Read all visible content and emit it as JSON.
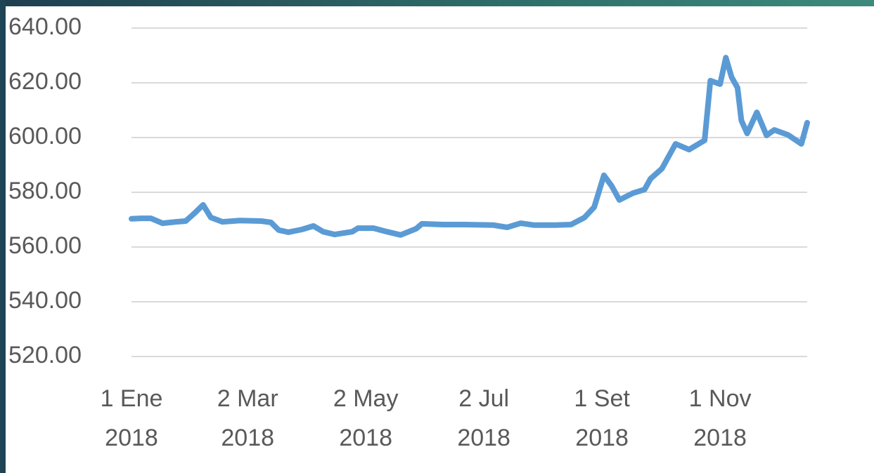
{
  "chart_data": {
    "type": "line",
    "x": [
      "2018-01-01",
      "2018-01-06",
      "2018-01-11",
      "2018-01-17",
      "2018-01-24",
      "2018-01-29",
      "2018-02-02",
      "2018-02-07",
      "2018-02-11",
      "2018-02-17",
      "2018-02-26",
      "2018-03-09",
      "2018-03-14",
      "2018-03-18",
      "2018-03-23",
      "2018-03-30",
      "2018-04-05",
      "2018-04-10",
      "2018-04-16",
      "2018-04-25",
      "2018-04-28",
      "2018-05-06",
      "2018-05-13",
      "2018-05-20",
      "2018-05-28",
      "2018-05-31",
      "2018-06-11",
      "2018-06-22",
      "2018-07-07",
      "2018-07-14",
      "2018-07-21",
      "2018-07-28",
      "2018-08-08",
      "2018-08-16",
      "2018-08-23",
      "2018-08-28",
      "2018-09-02",
      "2018-09-06",
      "2018-09-10",
      "2018-09-17",
      "2018-09-23",
      "2018-09-26",
      "2018-10-02",
      "2018-10-09",
      "2018-10-16",
      "2018-10-24",
      "2018-10-27",
      "2018-11-01",
      "2018-11-04",
      "2018-11-07",
      "2018-11-10",
      "2018-11-12",
      "2018-11-15",
      "2018-11-20",
      "2018-11-25",
      "2018-11-29",
      "2018-12-06",
      "2018-12-13",
      "2018-12-16"
    ],
    "series": [
      {
        "color": "#5b9bd5",
        "values": [
          570.3,
          570.5,
          570.5,
          568.7,
          569.2,
          569.5,
          572,
          575.4,
          570.8,
          569.2,
          569.7,
          569.5,
          569,
          566.2,
          565.4,
          566.4,
          567.7,
          565.6,
          564.6,
          565.6,
          566.9,
          566.9,
          565.6,
          564.4,
          566.7,
          568.5,
          568.2,
          568.2,
          568,
          567.2,
          568.7,
          568,
          568,
          568.2,
          570.8,
          574.6,
          586.2,
          582.3,
          577.2,
          579.7,
          581,
          584.9,
          588.7,
          597.7,
          595.6,
          599,
          620.8,
          619.5,
          629.2,
          622,
          618.2,
          606.2,
          601.5,
          609.2,
          600.8,
          602.8,
          601,
          597.7,
          605.4
        ]
      }
    ],
    "xlim": [
      "2018-01-01",
      "2018-12-16"
    ],
    "xticks": [
      {
        "value": "2018-01-01",
        "label": "1 Ene 2018"
      },
      {
        "value": "2018-03-02",
        "label": "2 Mar 2018"
      },
      {
        "value": "2018-05-02",
        "label": "2 May 2018"
      },
      {
        "value": "2018-07-02",
        "label": "2 Jul 2018"
      },
      {
        "value": "2018-09-01",
        "label": "1 Set 2018"
      },
      {
        "value": "2018-11-01",
        "label": "1 Nov 2018"
      }
    ],
    "ylim": [
      520,
      640
    ],
    "yticks": [
      {
        "value": 520,
        "label": "520.00"
      },
      {
        "value": 540,
        "label": "540.00"
      },
      {
        "value": 560,
        "label": "560.00"
      },
      {
        "value": 580,
        "label": "580.00"
      },
      {
        "value": 600,
        "label": "600.00"
      },
      {
        "value": 620,
        "label": "620.00"
      },
      {
        "value": 640,
        "label": "640.00"
      }
    ],
    "grid": true
  }
}
